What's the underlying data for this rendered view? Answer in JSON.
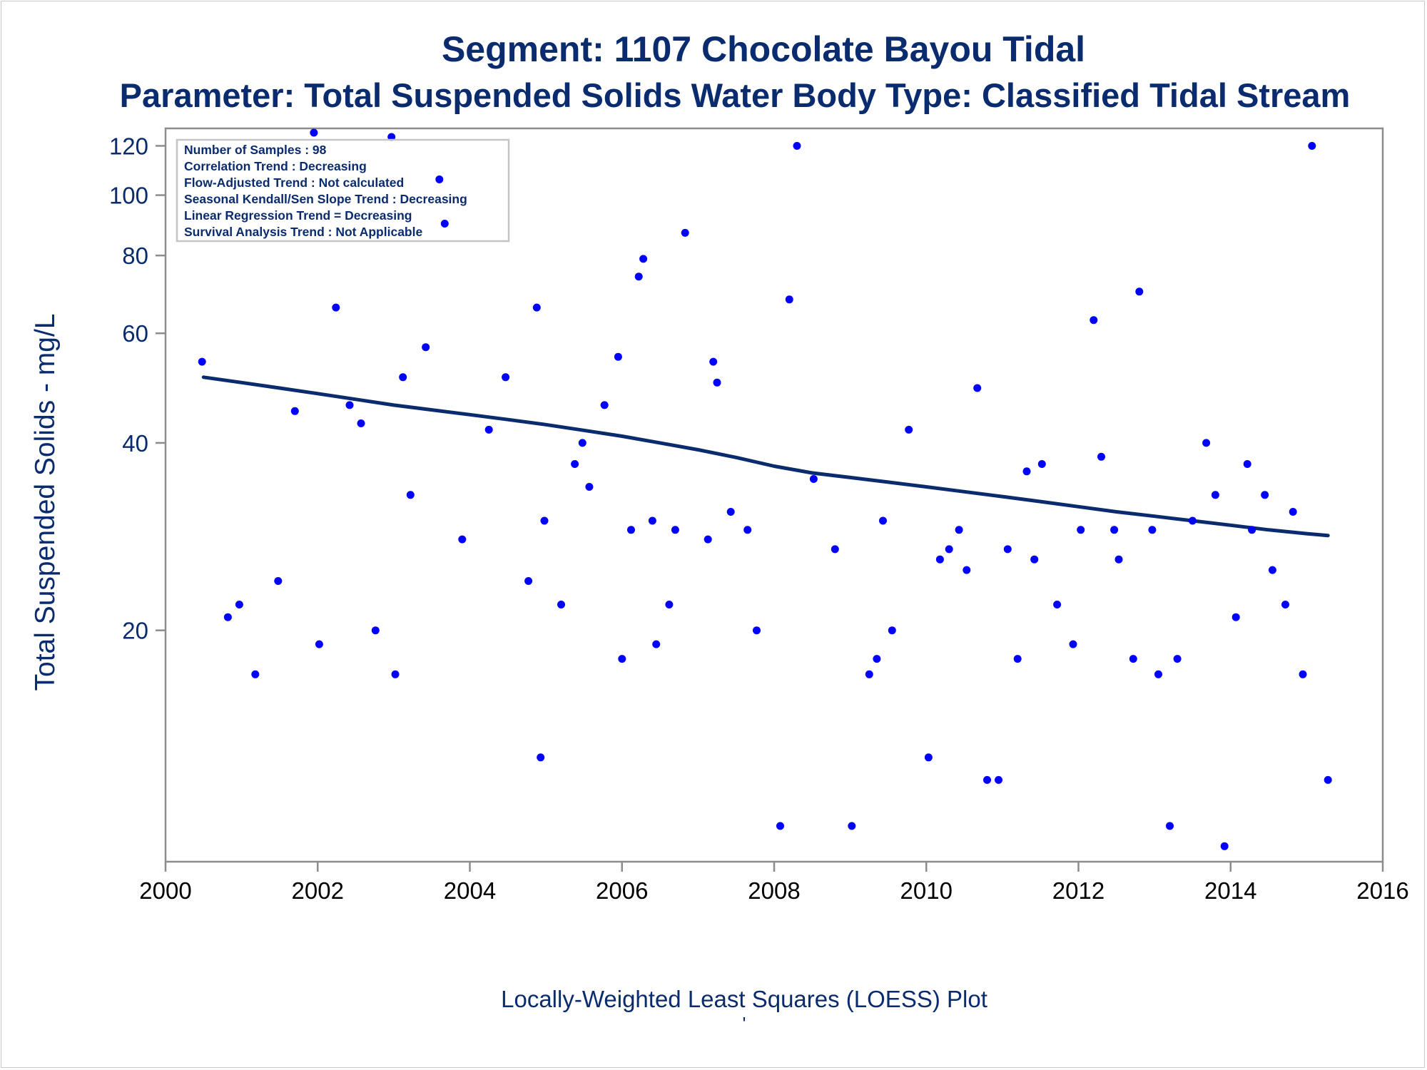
{
  "titles": {
    "line1": "Segment: 1107  Chocolate Bayou Tidal",
    "line2": "Parameter: Total Suspended Solids   Water Body Type: Classified Tidal Stream"
  },
  "footer": {
    "text": "Locally-Weighted Least Squares (LOESS) Plot",
    "mark": "'"
  },
  "colors": {
    "text": "#0a2c6e",
    "points": "#0000ff",
    "loess": "#0a2c6e",
    "axis": "#8c8c8c"
  },
  "chart_data": {
    "type": "scatter",
    "title": "Segment: 1107  Chocolate Bayou Tidal",
    "subtitle": "Parameter: Total Suspended Solids   Water Body Type: Classified Tidal Stream",
    "xlabel": "",
    "ylabel": "Total Suspended Solids - mg/L",
    "y_scale": "log",
    "xlim": [
      2000,
      2016
    ],
    "ylim": [
      8.5,
      128
    ],
    "x_ticks": [
      "2000",
      "2002",
      "2004",
      "2006",
      "2008",
      "2010",
      "2012",
      "2014",
      "2016"
    ],
    "y_ticks": [
      "20",
      "40",
      "60",
      "80",
      "100",
      "120"
    ],
    "grid": false,
    "legend": "none",
    "annotation_box": {
      "placement": "top-left",
      "lines": [
        "Number of Samples : 98",
        "Correlation Trend : Decreasing",
        "Flow-Adjusted Trend : Not calculated",
        "Seasonal Kendall/Sen Slope Trend : Decreasing",
        "Linear Regression Trend = Decreasing",
        "Survival Analysis Trend : Not Applicable"
      ]
    },
    "series": [
      {
        "type": "scatter",
        "x": [
          2000.48,
          2000.82,
          2000.97,
          2001.18,
          2001.48,
          2001.7,
          2001.95,
          2002.02,
          2002.24,
          2002.42,
          2002.57,
          2002.76,
          2002.97,
          2003.02,
          2003.12,
          2003.22,
          2003.42,
          2003.6,
          2003.67,
          2003.9,
          2004.25,
          2004.47,
          2004.77,
          2004.88,
          2004.93,
          2004.98,
          2005.2,
          2005.38,
          2005.48,
          2005.57,
          2005.77,
          2005.95,
          2006.0,
          2006.12,
          2006.22,
          2006.28,
          2006.4,
          2006.45,
          2006.62,
          2006.7,
          2006.83,
          2007.13,
          2007.2,
          2007.25,
          2007.43,
          2007.65,
          2007.77,
          2008.08,
          2008.2,
          2008.3,
          2008.52,
          2008.8,
          2009.02,
          2009.25,
          2009.35,
          2009.43,
          2009.55,
          2009.77,
          2010.03,
          2010.18,
          2010.3,
          2010.43,
          2010.53,
          2010.67,
          2010.8,
          2010.95,
          2011.07,
          2011.2,
          2011.32,
          2011.42,
          2011.52,
          2011.72,
          2011.93,
          2012.03,
          2012.2,
          2012.3,
          2012.47,
          2012.53,
          2012.72,
          2012.8,
          2012.97,
          2013.05,
          2013.2,
          2013.3,
          2013.5,
          2013.68,
          2013.8,
          2013.92,
          2014.07,
          2014.22,
          2014.28,
          2014.45,
          2014.55,
          2014.72,
          2014.82,
          2014.95,
          2015.07,
          2015.28
        ],
        "y": [
          54,
          21,
          22,
          17,
          24,
          45,
          126,
          19,
          66,
          46,
          43,
          20,
          124,
          17,
          51,
          33,
          57,
          106,
          90,
          28,
          42,
          51,
          24,
          66,
          12.5,
          30,
          22,
          37,
          40,
          34,
          46,
          55,
          18,
          29,
          74,
          79,
          30,
          19,
          22,
          29,
          87,
          28,
          54,
          50,
          31,
          29,
          20,
          9.7,
          68,
          120,
          35,
          27,
          9.7,
          17,
          18,
          30,
          20,
          42,
          12.5,
          26,
          27,
          29,
          25,
          49,
          11.5,
          11.5,
          27,
          18,
          36,
          26,
          37,
          22,
          19,
          29,
          63,
          38,
          29,
          26,
          18,
          70,
          29,
          17,
          9.7,
          18,
          30,
          40,
          33,
          9,
          21,
          37,
          29,
          33,
          25,
          22,
          31,
          17,
          120,
          11.5
        ]
      },
      {
        "type": "line",
        "x": [
          2000.5,
          2001,
          2001.5,
          2002,
          2002.5,
          2003,
          2003.5,
          2004,
          2004.5,
          2005,
          2005.5,
          2006,
          2006.5,
          2007,
          2007.5,
          2008,
          2008.5,
          2009,
          2009.5,
          2010,
          2010.5,
          2011,
          2011.5,
          2012,
          2012.5,
          2013,
          2013.5,
          2014,
          2014.5,
          2015,
          2015.28
        ],
        "y": [
          51,
          50,
          49,
          48,
          47,
          46,
          45.2,
          44.4,
          43.6,
          42.8,
          41.9,
          41,
          40,
          39,
          37.9,
          36.7,
          35.8,
          35.2,
          34.6,
          34,
          33.4,
          32.8,
          32.2,
          31.6,
          31,
          30.5,
          30,
          29.5,
          29,
          28.6,
          28.4
        ]
      }
    ]
  }
}
